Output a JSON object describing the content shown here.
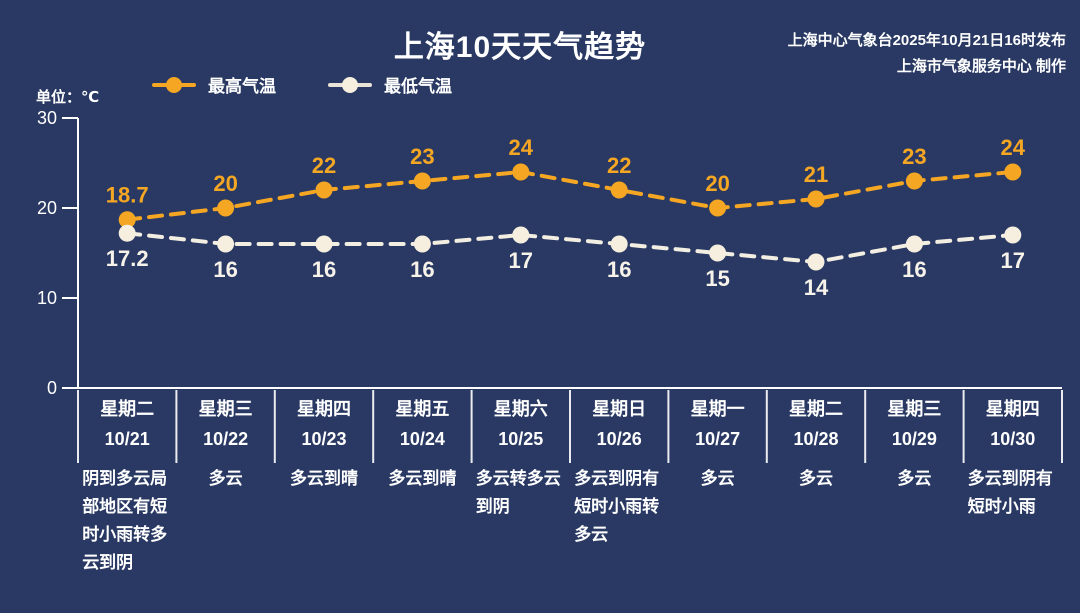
{
  "title": "上海10天天气趋势",
  "source": {
    "line1": "上海中心气象台2025年10月21日16时发布",
    "line2": "上海市气象服务中心 制作"
  },
  "unit_label": "单位：℃",
  "legend": {
    "max_label": "最高气温",
    "min_label": "最低气温"
  },
  "colors": {
    "background": "#293963",
    "max_series": "#F5A623",
    "min_series": "#F6EFDF",
    "min_value_label": "#F7F3EA",
    "axis": "#FFFFFF"
  },
  "chart_data": {
    "type": "line",
    "title": "上海10天天气趋势",
    "ylabel": "单位：℃",
    "ylim": [
      0,
      30
    ],
    "yticks": [
      0,
      10,
      20,
      30
    ],
    "grid": false,
    "legend_position": "top",
    "line_style": "dashed",
    "categories_weekday": [
      "星期二",
      "星期三",
      "星期四",
      "星期五",
      "星期六",
      "星期日",
      "星期一",
      "星期二",
      "星期三",
      "星期四"
    ],
    "categories_date": [
      "10/21",
      "10/22",
      "10/23",
      "10/24",
      "10/25",
      "10/26",
      "10/27",
      "10/28",
      "10/29",
      "10/30"
    ],
    "series": [
      {
        "name": "最高气温",
        "color": "#F5A623",
        "values": [
          18.7,
          20,
          22,
          23,
          24,
          22,
          20,
          21,
          23,
          24
        ]
      },
      {
        "name": "最低气温",
        "color": "#F6EFDF",
        "values": [
          17.2,
          16,
          16,
          16,
          17,
          16,
          15,
          14,
          16,
          17
        ]
      }
    ],
    "weather": [
      "阴到多云局部地区有短时小雨转多云到阴",
      "多云",
      "多云到晴",
      "多云到晴",
      "多云转多云到阴",
      "多云到阴有短时小雨转多云",
      "多云",
      "多云",
      "多云",
      "多云到阴有短时小雨"
    ]
  }
}
